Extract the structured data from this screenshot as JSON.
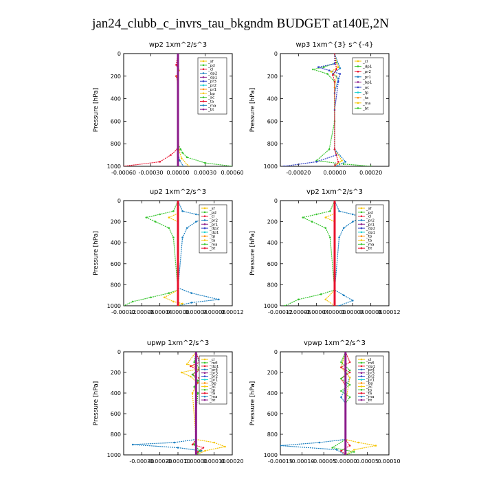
{
  "figure": {
    "title": "jan24_clubb_c_invrs_tau_bkgndm  BUDGET at140E,2N"
  },
  "chart_data": [
    {
      "type": "line",
      "title": "wp2   1xm^2/s^3",
      "ylabel": "Pressure [hPa]",
      "xlim": [
        -0.0006,
        0.0006
      ],
      "ylim": [
        1000,
        0
      ],
      "xticks": [
        -0.0006,
        -0.0003,
        0.0,
        0.0003,
        0.0006
      ],
      "xtick_labels": [
        "-0.00060",
        "-0.00030",
        "0.00000",
        "0.00030",
        "0.00060"
      ],
      "yticks": [
        0,
        200,
        400,
        600,
        800,
        1000
      ],
      "legend_position": "upper-right",
      "legend": [
        "_sf",
        "_pd",
        "_cl",
        "_dp2",
        "_dp1",
        "_pr3",
        "_pr2",
        "_pr1",
        "_bp",
        "_ac",
        "_ta",
        "_ma",
        "_bt"
      ],
      "series": [
        {
          "name": "_cl",
          "color": "#e8112d",
          "x": [
            0,
            -2e-05,
            1e-05,
            -2e-05,
            0,
            0,
            0,
            -1e-05,
            -8e-05,
            -0.0002,
            -0.0006
          ],
          "y": [
            0,
            100,
            150,
            200,
            260,
            500,
            800,
            850,
            900,
            960,
            1000
          ]
        },
        {
          "name": "_ac",
          "color": "#35c42c",
          "x": [
            0,
            0,
            0,
            0,
            0,
            3e-05,
            5e-05,
            0.0001,
            0.0003,
            0.0006
          ],
          "y": [
            0,
            100,
            200,
            500,
            800,
            850,
            880,
            920,
            970,
            1000
          ]
        },
        {
          "name": "_pr3",
          "color": "#f5c400",
          "x": [
            0,
            1e-05,
            -1e-05,
            0,
            1e-05,
            4e-05,
            0.00012
          ],
          "y": [
            0,
            150,
            200,
            500,
            850,
            930,
            1000
          ]
        },
        {
          "name": "_bp",
          "color": "#1a7fc0",
          "x": [
            0,
            0,
            0,
            0,
            2e-05,
            6e-05
          ],
          "y": [
            0,
            200,
            500,
            880,
            950,
            1000
          ]
        },
        {
          "name": "_dp1",
          "color": "#8a1a8a",
          "x": [
            0,
            0,
            0,
            0,
            0,
            0
          ],
          "y": [
            0,
            200,
            400,
            600,
            800,
            1000
          ]
        }
      ]
    },
    {
      "type": "line",
      "title": "wp3   1xm^{3} s^{-4}",
      "ylabel": "Pressure [hPa]",
      "xlim": [
        -0.0003,
        0.0003
      ],
      "ylim": [
        1000,
        0
      ],
      "xticks": [
        -0.0002,
        0.0,
        0.0002
      ],
      "xtick_labels": [
        "-0.00020",
        "0.00000",
        "0.00020"
      ],
      "yticks": [
        0,
        200,
        400,
        600,
        800,
        1000
      ],
      "legend_position": "upper-right",
      "legend": [
        "_cl",
        "_dp1",
        "_pr2",
        "_pr1",
        "_bp1",
        "_ac",
        "_tp",
        "_ta",
        "_ma",
        "_bt"
      ],
      "series": [
        {
          "name": "_ac",
          "color": "#35c42c",
          "x": [
            0,
            1e-05,
            -6e-05,
            -0.00012,
            -4e-05,
            0,
            0,
            -3e-05,
            -0.0001,
            5e-05,
            0.0002
          ],
          "y": [
            0,
            80,
            120,
            140,
            180,
            250,
            600,
            850,
            950,
            980,
            1000
          ]
        },
        {
          "name": "_tp",
          "color": "#3040c8",
          "x": [
            0,
            0,
            -9e-05,
            -3e-05,
            3e-05,
            2e-05,
            0,
            0,
            1e-05,
            -0.0001,
            -0.00028
          ],
          "y": [
            0,
            90,
            120,
            150,
            180,
            250,
            500,
            850,
            900,
            960,
            1000
          ]
        },
        {
          "name": "_pr2",
          "color": "#f5c400",
          "x": [
            0,
            2e-05,
            -2e-05,
            1e-05,
            0,
            0,
            4e-05,
            0
          ],
          "y": [
            0,
            120,
            160,
            200,
            300,
            850,
            950,
            1000
          ]
        },
        {
          "name": "_bp1",
          "color": "#1a7fc0",
          "x": [
            0,
            3e-05,
            -1e-05,
            2e-05,
            0,
            0,
            6e-05,
            1e-05
          ],
          "y": [
            0,
            130,
            180,
            220,
            350,
            850,
            960,
            1000
          ]
        },
        {
          "name": "_cl",
          "color": "#e8112d",
          "x": [
            0,
            1e-05,
            -1e-05,
            0,
            0,
            2e-05,
            0
          ],
          "y": [
            0,
            140,
            190,
            250,
            850,
            960,
            1000
          ]
        }
      ]
    },
    {
      "type": "line",
      "title": "up2   1xm^2/s^3",
      "ylabel": "Pressure [hPa]",
      "xlim": [
        -0.00012,
        0.00012
      ],
      "ylim": [
        1000,
        0
      ],
      "xticks": [
        -0.00012,
        -8e-05,
        -4e-05,
        0.0,
        4e-05,
        8e-05,
        0.00012
      ],
      "xtick_labels": [
        "-0.00012",
        "-0.00008",
        "-0.00004",
        "0.00000",
        "0.00004",
        "0.00008",
        "0.00012"
      ],
      "yticks": [
        0,
        200,
        400,
        600,
        800,
        1000
      ],
      "legend_position": "upper-right",
      "legend": [
        "_sf",
        "_pd",
        "_cl",
        "_pr2",
        "_pr1",
        "_dp2",
        "_dp1",
        "_tp",
        "_ta",
        "_ma",
        "_bt"
      ],
      "series": [
        {
          "name": "_pr1",
          "color": "#35c42c",
          "x": [
            0,
            -1e-05,
            -4e-05,
            -7e-05,
            -5e-05,
            -2e-05,
            -1e-05,
            0,
            -2e-05,
            -6e-05,
            -0.0001,
            -0.00012
          ],
          "y": [
            0,
            100,
            130,
            160,
            200,
            260,
            350,
            850,
            880,
            920,
            960,
            1000
          ]
        },
        {
          "name": "_tp",
          "color": "#1a7fc0",
          "x": [
            0,
            1e-05,
            4e-05,
            7e-05,
            4e-05,
            2e-05,
            1e-05,
            0,
            3e-05,
            9e-05,
            3e-05,
            0
          ],
          "y": [
            0,
            100,
            130,
            160,
            200,
            260,
            350,
            830,
            880,
            940,
            970,
            1000
          ]
        },
        {
          "name": "_pr2",
          "color": "#f5c400",
          "x": [
            0,
            0,
            -2e-05,
            0,
            0,
            -3e-05,
            -1e-05,
            1e-05,
            0
          ],
          "y": [
            0,
            120,
            160,
            200,
            850,
            920,
            960,
            980,
            1000
          ]
        },
        {
          "name": "_cl",
          "color": "#e8112d",
          "x": [
            0,
            0,
            0,
            0,
            0,
            0
          ],
          "y": [
            0,
            200,
            400,
            600,
            800,
            1000
          ]
        }
      ]
    },
    {
      "type": "line",
      "title": "vp2   1xm^2/s^3",
      "ylabel": "Pressure [hPa]",
      "xlim": [
        -0.00012,
        0.00012
      ],
      "ylim": [
        1000,
        0
      ],
      "xticks": [
        -0.00012,
        -8e-05,
        -4e-05,
        0.0,
        4e-05,
        8e-05,
        0.00012
      ],
      "xtick_labels": [
        "-0.00012",
        "-0.00008",
        "-0.00004",
        "0.00000",
        "0.00004",
        "0.00008",
        "0.00012"
      ],
      "yticks": [
        0,
        200,
        400,
        600,
        800,
        1000
      ],
      "legend_position": "upper-right",
      "legend": [
        "_sf",
        "_pd",
        "_cl",
        "_pr2",
        "_pr1",
        "_dp2",
        "_dp1",
        "_tp",
        "_ta",
        "_ma",
        "_bt"
      ],
      "series": [
        {
          "name": "_pr1",
          "color": "#35c42c",
          "x": [
            0,
            -1e-05,
            -4e-05,
            -7e-05,
            -5e-05,
            -2e-05,
            -1e-05,
            0,
            -3e-05,
            -8e-05,
            -0.00011
          ],
          "y": [
            0,
            100,
            130,
            160,
            200,
            260,
            350,
            850,
            890,
            940,
            1000
          ]
        },
        {
          "name": "_tp",
          "color": "#1a7fc0",
          "x": [
            0,
            1e-05,
            4e-05,
            6e-05,
            4e-05,
            2e-05,
            1e-05,
            0,
            2e-05,
            4e-05,
            1e-05
          ],
          "y": [
            0,
            100,
            130,
            160,
            200,
            260,
            350,
            850,
            900,
            950,
            1000
          ]
        },
        {
          "name": "_pr2",
          "color": "#f5c400",
          "x": [
            0,
            0,
            -2e-05,
            0,
            0,
            -2e-05,
            0
          ],
          "y": [
            0,
            120,
            160,
            200,
            850,
            940,
            1000
          ]
        },
        {
          "name": "_cl",
          "color": "#e8112d",
          "x": [
            0,
            0,
            0,
            0,
            0,
            0
          ],
          "y": [
            0,
            200,
            400,
            600,
            800,
            1000
          ]
        }
      ]
    },
    {
      "type": "line",
      "title": "upwp   1xm^2/s^3",
      "ylabel": "Pressure [hPa]",
      "xlim": [
        -0.0004,
        0.0002
      ],
      "ylim": [
        1000,
        0
      ],
      "xticks": [
        -0.0003,
        -0.0002,
        -0.0001,
        0.0,
        0.0001,
        0.0002
      ],
      "xtick_labels": [
        "-0.00030",
        "-0.00020",
        "-0.00010",
        "0.00000",
        "0.00010",
        "0.00020"
      ],
      "yticks": [
        0,
        200,
        400,
        600,
        800,
        1000
      ],
      "legend_position": "upper-right",
      "legend": [
        "_cl",
        "_mfl",
        "_dp1",
        "_pr4",
        "_pr3",
        "_pr2",
        "_pr1",
        "_bp",
        "_ac",
        "_tp",
        "_ta",
        "_ma",
        "_bt"
      ],
      "series": [
        {
          "name": "_tp",
          "color": "#1a7fc0",
          "x": [
            0,
            2e-05,
            9e-05,
            3e-05,
            5e-05,
            0,
            0,
            -0.00012,
            -0.00035,
            -0.0001,
            3e-05,
            0
          ],
          "y": [
            0,
            120,
            180,
            220,
            260,
            320,
            850,
            880,
            900,
            930,
            960,
            1000
          ]
        },
        {
          "name": "_pr1",
          "color": "#f5c400",
          "x": [
            0,
            -5e-05,
            3e-05,
            -8e-05,
            -3e-05,
            1e-05,
            -2e-05,
            0,
            0.0001,
            0.00016,
            5e-05,
            0
          ],
          "y": [
            0,
            120,
            160,
            200,
            240,
            300,
            400,
            850,
            880,
            920,
            960,
            1000
          ]
        },
        {
          "name": "_pr2",
          "color": "#e8112d",
          "x": [
            0,
            2e-05,
            -3e-05,
            2e-05,
            -2e-05,
            2e-05,
            0,
            0,
            -2e-05,
            4e-05,
            1e-05,
            0
          ],
          "y": [
            0,
            100,
            140,
            180,
            220,
            260,
            330,
            850,
            900,
            930,
            970,
            1000
          ]
        },
        {
          "name": "_ac",
          "color": "#35c42c",
          "x": [
            0,
            -1e-05,
            2e-05,
            -2e-05,
            1e-05,
            -1e-05,
            1e-05,
            0,
            0,
            -1e-05,
            2e-05,
            0
          ],
          "y": [
            0,
            100,
            160,
            220,
            280,
            340,
            400,
            600,
            850,
            900,
            960,
            1000
          ]
        },
        {
          "name": "_cl",
          "color": "#8a1a8a",
          "x": [
            0,
            0,
            0,
            0,
            0,
            0
          ],
          "y": [
            0,
            200,
            400,
            600,
            800,
            1000
          ]
        }
      ]
    },
    {
      "type": "line",
      "title": "vpwp   1xm^2/s^3",
      "ylabel": "Pressure [hPa]",
      "xlim": [
        -0.00015,
        0.0001
      ],
      "ylim": [
        1000,
        0
      ],
      "xticks": [
        -0.00015,
        -0.0001,
        -5e-05,
        0.0,
        5e-05,
        0.0001
      ],
      "xtick_labels": [
        "-0.00015",
        "-0.00010",
        "-0.00005",
        "0.00000",
        "0.00005",
        "0.00010"
      ],
      "yticks": [
        0,
        200,
        400,
        600,
        800,
        1000
      ],
      "legend_position": "upper-right",
      "legend": [
        "_cl",
        "_mfl",
        "_dp1",
        "_pr4",
        "_pr3",
        "_pr2",
        "_pr1",
        "_bp",
        "_ac",
        "_tp",
        "_ta",
        "_ma",
        "_bt"
      ],
      "series": [
        {
          "name": "_tp",
          "color": "#1a7fc0",
          "x": [
            0,
            -1e-05,
            1e-05,
            -1e-05,
            0,
            0,
            -6e-05,
            -0.00015,
            -2e-05,
            0
          ],
          "y": [
            0,
            150,
            250,
            440,
            500,
            850,
            880,
            910,
            950,
            1000
          ]
        },
        {
          "name": "_pr1",
          "color": "#f5c400",
          "x": [
            0,
            -1e-05,
            1e-05,
            0,
            0,
            3e-05,
            7e-05,
            2e-05,
            0
          ],
          "y": [
            0,
            150,
            250,
            500,
            850,
            880,
            910,
            950,
            1000
          ]
        },
        {
          "name": "_pr2",
          "color": "#e8112d",
          "x": [
            0,
            1e-05,
            -1e-05,
            1e-05,
            -1e-05,
            0,
            0,
            1e-05,
            -1e-05,
            0
          ],
          "y": [
            0,
            100,
            150,
            200,
            260,
            330,
            850,
            910,
            960,
            1000
          ]
        },
        {
          "name": "_ac",
          "color": "#35c42c",
          "x": [
            0,
            -1e-05,
            1e-05,
            -1e-05,
            1e-05,
            -1e-05,
            1e-05,
            0,
            0,
            -3e-05,
            2e-05,
            0
          ],
          "y": [
            0,
            100,
            180,
            260,
            320,
            380,
            440,
            500,
            850,
            930,
            970,
            1000
          ]
        },
        {
          "name": "_cl",
          "color": "#8a1a8a",
          "x": [
            0,
            0,
            0,
            0,
            0,
            0
          ],
          "y": [
            0,
            200,
            400,
            600,
            800,
            1000
          ]
        }
      ]
    }
  ]
}
